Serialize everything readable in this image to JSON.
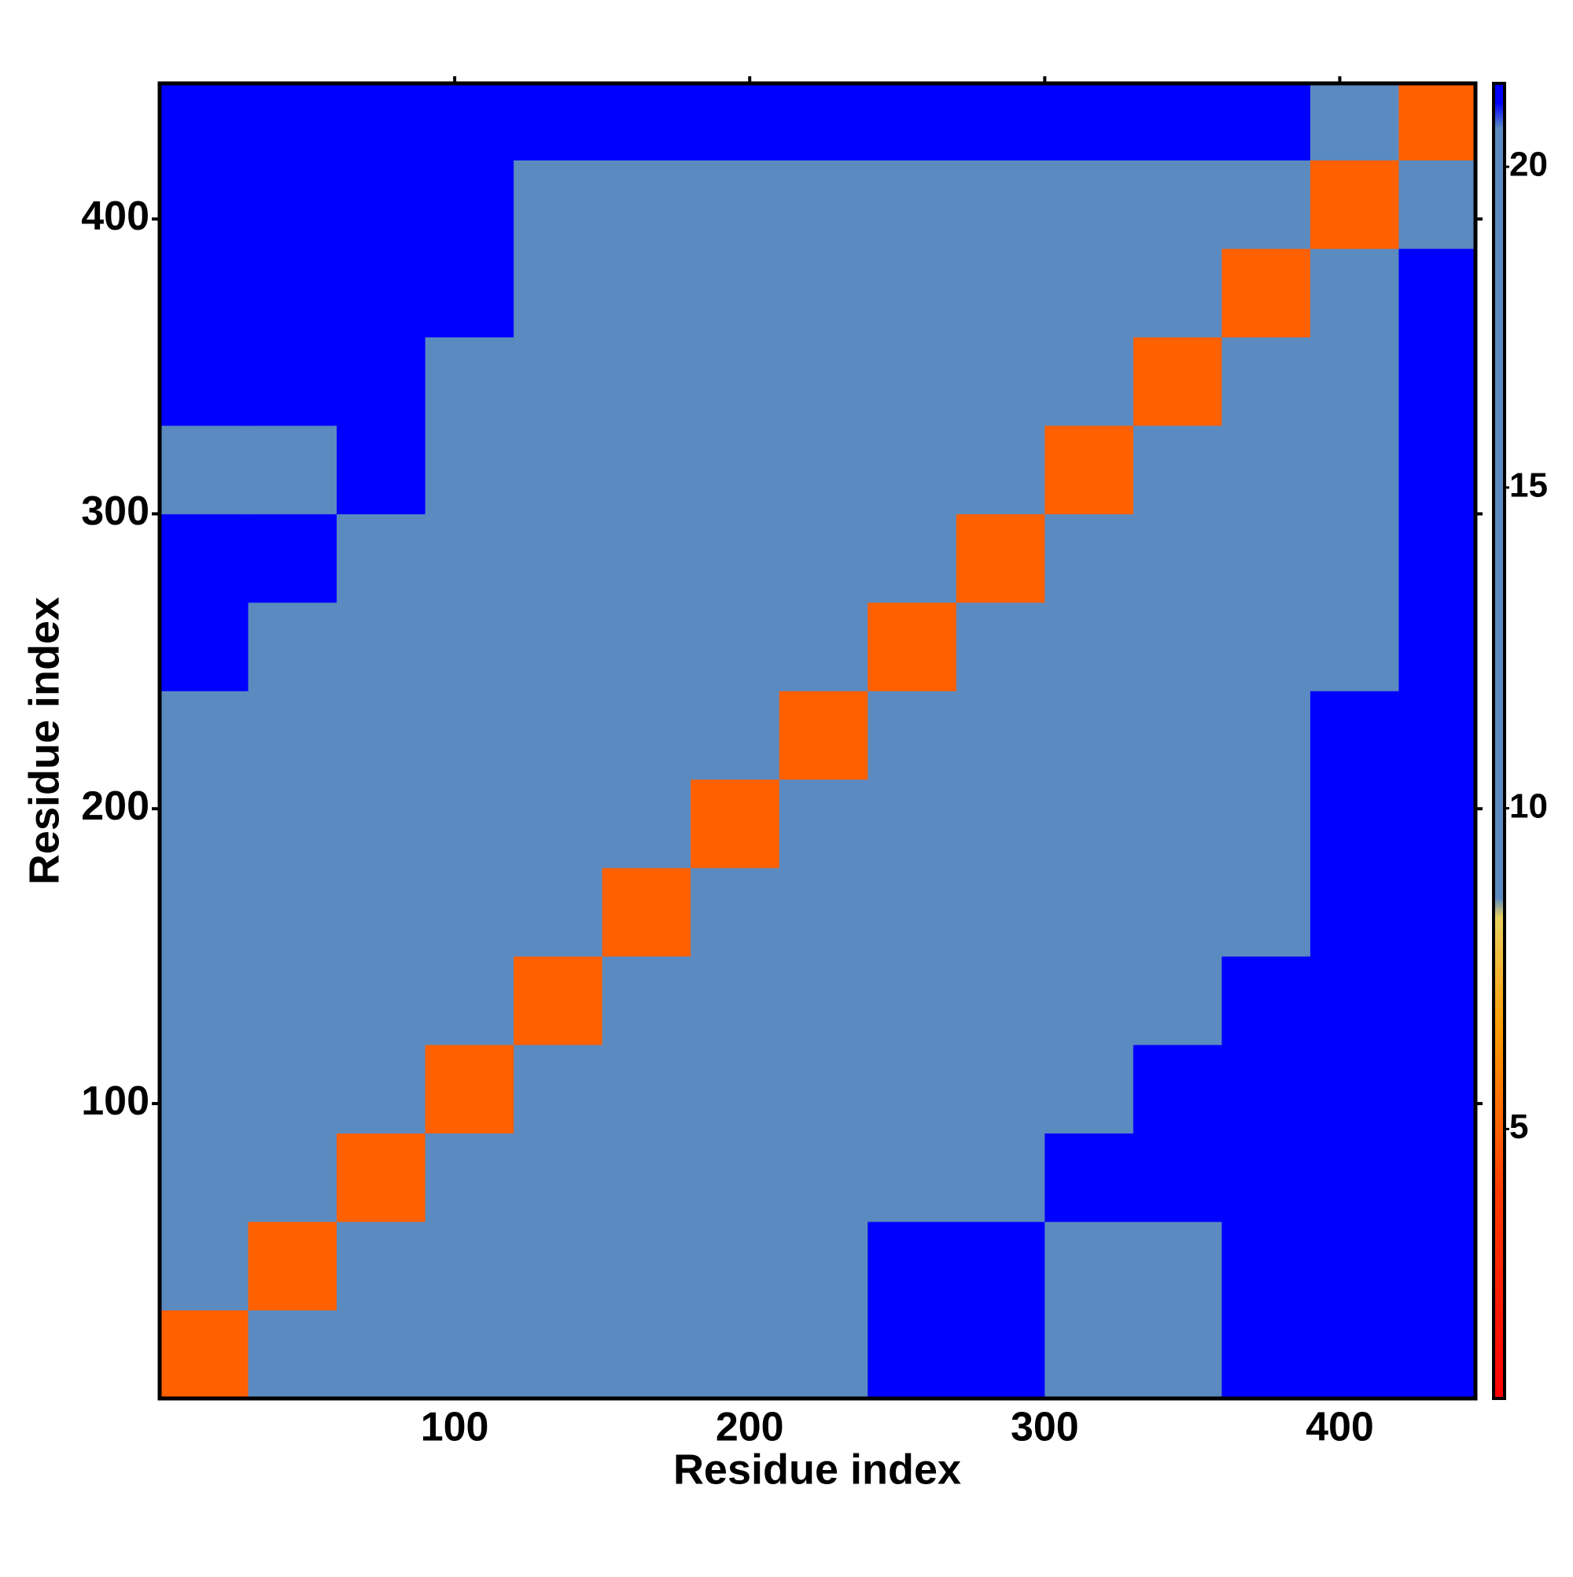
{
  "chart_data": {
    "type": "heatmap",
    "xlabel": "Residue index",
    "ylabel": "Residue index",
    "xbins": [
      0,
      30,
      60,
      90,
      120,
      150,
      180,
      210,
      240,
      270,
      300,
      330,
      360,
      390,
      420,
      446
    ],
    "ybins": [
      0,
      30,
      60,
      90,
      120,
      150,
      180,
      210,
      240,
      270,
      300,
      330,
      360,
      390,
      420,
      446
    ],
    "z": [
      [
        5,
        12,
        15,
        17,
        17,
        18,
        17,
        17,
        21.3,
        21.3,
        18,
        17,
        21.3,
        21.3,
        21.3
      ],
      [
        13,
        5,
        12,
        15,
        16,
        19,
        19,
        19,
        21.3,
        21.3,
        19,
        20,
        21.3,
        21.3,
        21.3
      ],
      [
        16,
        12,
        5,
        12,
        15,
        18,
        19,
        20,
        20,
        20,
        21.3,
        21.3,
        21.3,
        21.3,
        21.3
      ],
      [
        17,
        16,
        13,
        5,
        12,
        15,
        18,
        19,
        20,
        19,
        20,
        21.3,
        21.3,
        21.3,
        21.3
      ],
      [
        16,
        14,
        15,
        12,
        5,
        12,
        15,
        17,
        19,
        19,
        19,
        20,
        21.3,
        21.3,
        21.3
      ],
      [
        16,
        17,
        17,
        15,
        12,
        5,
        12,
        14,
        17,
        18,
        18,
        18,
        19,
        21.3,
        21.3
      ],
      [
        17,
        19,
        18,
        17,
        14,
        12,
        5,
        12,
        15,
        16,
        17,
        17,
        18,
        21.3,
        21.3
      ],
      [
        17,
        18,
        18,
        17,
        16,
        15,
        12,
        5,
        12,
        14,
        16,
        16,
        18,
        21.3,
        21.3
      ],
      [
        21.3,
        20,
        18,
        17,
        17,
        16,
        14,
        12,
        5,
        12,
        13,
        15,
        17,
        20,
        21.3
      ],
      [
        21.3,
        21.3,
        20,
        19,
        17,
        18,
        16,
        14,
        12,
        5,
        12,
        14,
        16,
        20,
        21.3
      ],
      [
        18,
        19,
        21.3,
        20,
        18,
        18,
        17,
        17,
        16,
        13,
        5,
        12,
        15,
        18,
        21.3
      ],
      [
        21.3,
        21.3,
        21.3,
        20,
        19,
        18,
        17,
        16,
        16,
        15,
        12,
        5,
        13,
        17,
        21.3
      ],
      [
        21.3,
        21.3,
        21.3,
        21.3,
        19,
        18,
        17,
        18,
        17,
        17,
        16,
        14,
        5,
        12,
        21.3
      ],
      [
        21.3,
        21.3,
        21.3,
        21.3,
        19,
        20.5,
        20.5,
        20.5,
        19,
        19,
        18,
        17,
        15,
        5,
        17
      ],
      [
        21.3,
        21.3,
        21.3,
        21.3,
        21.3,
        21.3,
        21.3,
        21.3,
        21.3,
        21.3,
        21.3,
        21.3,
        21.3,
        17,
        5
      ]
    ],
    "xlim": [
      0,
      446
    ],
    "ylim": [
      0,
      446
    ],
    "xticks": [
      100,
      200,
      300,
      400
    ],
    "yticks": [
      100,
      200,
      300,
      400
    ],
    "clim": [
      0.8,
      21.3
    ],
    "cticks": [
      5,
      10,
      15,
      20
    ],
    "colorscale": [
      [
        0.8,
        "#ff0000"
      ],
      [
        4,
        "#ff3a00"
      ],
      [
        6.5,
        "#ff9a00"
      ],
      [
        8.3,
        "#e8d060"
      ],
      [
        8.6,
        "#5b8ac0"
      ],
      [
        20.6,
        "#5b8ac0"
      ],
      [
        21,
        "#0000ff"
      ],
      [
        21.3,
        "#0000ff"
      ]
    ]
  }
}
